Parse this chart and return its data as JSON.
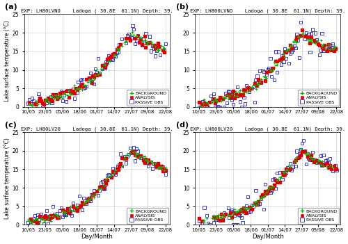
{
  "subplots": [
    {
      "label": "(a)",
      "exp": "EXP: LH80LVNO"
    },
    {
      "label": "(b)",
      "exp": "EXP: LH800LVNO"
    },
    {
      "label": "(c)",
      "exp": "EXP: LH80LV20"
    },
    {
      "label": "(d)",
      "exp": "EXP: LH800LV20"
    }
  ],
  "location": "Ladoga ( 30.8E  61.1N) Depth: 39.",
  "xtick_labels": [
    "10/05",
    "23/05",
    "05/06",
    "18/06",
    "01/07",
    "14/07",
    "27/07",
    "09/08",
    "22/08"
  ],
  "xtick_positions": [
    0,
    13,
    26,
    39,
    52,
    65,
    78,
    90,
    104
  ],
  "xlabel": "Day/Month",
  "ylabel": "Lake surface temperature (°C)",
  "ylim": [
    0,
    25
  ],
  "yticks": [
    0,
    5,
    10,
    15,
    20,
    25
  ],
  "plot_bg_color": "#ffffff",
  "fig_bg_color": "#ffffff",
  "colors": {
    "background": "#00bb00",
    "analysis": "#dd0000",
    "passive": "#2222cc"
  },
  "legend_labels": [
    "BACKGROUND",
    "ANALYSIS",
    "PASSIVE OBS"
  ],
  "panel_configs": [
    {
      "passive_lag": 0,
      "passive_noise": 1.2,
      "passive_start": 0,
      "bg_noise": 0.5,
      "an_noise": 0.6
    },
    {
      "passive_lag": 20,
      "passive_noise": 2.5,
      "passive_start": 0,
      "bg_noise": 0.5,
      "an_noise": 0.5
    },
    {
      "passive_lag": 0,
      "passive_noise": 1.2,
      "passive_start": 0,
      "bg_noise": 0.5,
      "an_noise": 0.5
    },
    {
      "passive_lag": 10,
      "passive_noise": 1.8,
      "passive_start": 0,
      "bg_noise": 0.5,
      "an_noise": 0.5
    }
  ]
}
